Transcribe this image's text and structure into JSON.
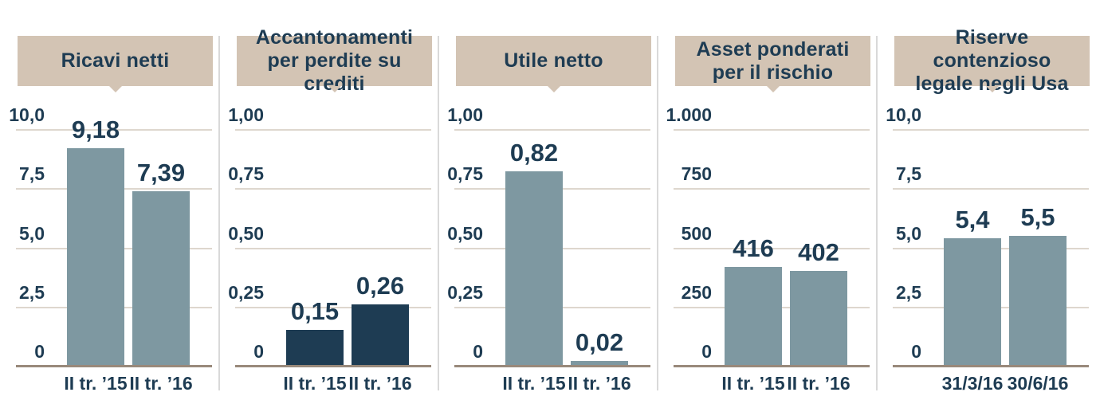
{
  "colors": {
    "banner_bg": "#d3c4b4",
    "navy": "#1e3c53",
    "bar_gray_blue": "#7e98a1",
    "bar_dark_navy": "#1e3c53",
    "gridline": "#ded7ce",
    "baseline": "#99897b",
    "separator": "#d9d9d9"
  },
  "chart_data": [
    {
      "type": "bar",
      "title": "Ricavi netti",
      "categories": [
        "II tr. ’15",
        "II tr. ’16"
      ],
      "values": [
        9.18,
        7.39
      ],
      "value_labels": [
        "9,18",
        "7,39"
      ],
      "ylim": [
        0,
        10
      ],
      "grid": true,
      "legend": null,
      "bar_color": "#7e98a1",
      "yticks": [
        {
          "value": 10,
          "label": "10,0"
        },
        {
          "value": 7.5,
          "label": "7,5"
        },
        {
          "value": 5,
          "label": "5,0"
        },
        {
          "value": 2.5,
          "label": "2,5"
        },
        {
          "value": 0,
          "label": "0"
        }
      ]
    },
    {
      "type": "bar",
      "title": "Accantonamenti\nper perdite su crediti",
      "categories": [
        "II tr. ’15",
        "II tr. ’16"
      ],
      "values": [
        0.15,
        0.26
      ],
      "value_labels": [
        "0,15",
        "0,26"
      ],
      "ylim": [
        0,
        1
      ],
      "grid": true,
      "legend": null,
      "bar_color": "#1e3c53",
      "yticks": [
        {
          "value": 1,
          "label": "1,00"
        },
        {
          "value": 0.75,
          "label": "0,75"
        },
        {
          "value": 0.5,
          "label": "0,50"
        },
        {
          "value": 0.25,
          "label": "0,25"
        },
        {
          "value": 0,
          "label": "0"
        }
      ]
    },
    {
      "type": "bar",
      "title": "Utile netto",
      "categories": [
        "II tr. ’15",
        "II tr. ’16"
      ],
      "values": [
        0.82,
        0.02
      ],
      "value_labels": [
        "0,82",
        "0,02"
      ],
      "ylim": [
        0,
        1
      ],
      "grid": true,
      "legend": null,
      "bar_color": "#7e98a1",
      "yticks": [
        {
          "value": 1,
          "label": "1,00"
        },
        {
          "value": 0.75,
          "label": "0,75"
        },
        {
          "value": 0.5,
          "label": "0,50"
        },
        {
          "value": 0.25,
          "label": "0,25"
        },
        {
          "value": 0,
          "label": "0"
        }
      ]
    },
    {
      "type": "bar",
      "title": "Asset ponderati\nper il rischio",
      "categories": [
        "II tr. ’15",
        "II tr. ’16"
      ],
      "values": [
        416,
        402
      ],
      "value_labels": [
        "416",
        "402"
      ],
      "ylim": [
        0,
        1000
      ],
      "grid": true,
      "legend": null,
      "bar_color": "#7e98a1",
      "yticks": [
        {
          "value": 1000,
          "label": "1.000"
        },
        {
          "value": 750,
          "label": "750"
        },
        {
          "value": 500,
          "label": "500"
        },
        {
          "value": 250,
          "label": "250"
        },
        {
          "value": 0,
          "label": "0"
        }
      ]
    },
    {
      "type": "bar",
      "title": "Riserve contenzioso\nlegale negli Usa",
      "categories": [
        "31/3/16",
        "30/6/16"
      ],
      "values": [
        5.4,
        5.5
      ],
      "value_labels": [
        "5,4",
        "5,5"
      ],
      "ylim": [
        0,
        10
      ],
      "grid": true,
      "legend": null,
      "bar_color": "#7e98a1",
      "yticks": [
        {
          "value": 10,
          "label": "10,0"
        },
        {
          "value": 7.5,
          "label": "7,5"
        },
        {
          "value": 5,
          "label": "5,0"
        },
        {
          "value": 2.5,
          "label": "2,5"
        },
        {
          "value": 0,
          "label": "0"
        }
      ]
    }
  ]
}
